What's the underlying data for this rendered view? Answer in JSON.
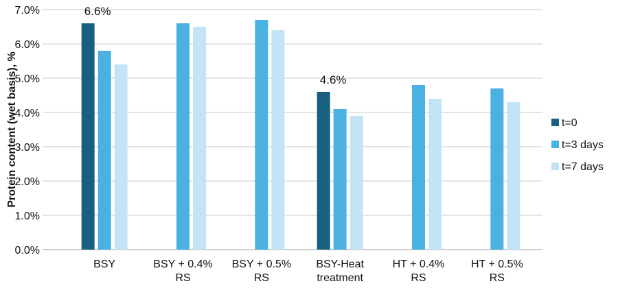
{
  "chart_data": {
    "type": "bar",
    "title": "",
    "xlabel": "",
    "ylabel": "Protein content (wet basis), %",
    "ylim": [
      0,
      7
    ],
    "yticks": [
      "0.0%",
      "1.0%",
      "2.0%",
      "3.0%",
      "4.0%",
      "5.0%",
      "6.0%",
      "7.0%"
    ],
    "grid": true,
    "legend_position": "right",
    "categories": [
      [
        "BSY"
      ],
      [
        "BSY + 0.4%",
        "RS"
      ],
      [
        "BSY + 0.5%",
        "RS"
      ],
      [
        "BSY-Heat",
        "treatment"
      ],
      [
        "HT + 0.4%",
        "RS"
      ],
      [
        "HT + 0.5%",
        "RS"
      ]
    ],
    "series": [
      {
        "name": "t=0",
        "color": "#17607f",
        "values": [
          6.6,
          null,
          null,
          4.6,
          null,
          null
        ]
      },
      {
        "name": "t=3 days",
        "color": "#4ab1e1",
        "values": [
          5.8,
          6.6,
          6.7,
          4.1,
          4.8,
          4.7
        ]
      },
      {
        "name": "t=7 days",
        "color": "#c2e4f4",
        "values": [
          5.4,
          6.5,
          6.4,
          3.9,
          4.4,
          4.3
        ]
      }
    ],
    "annotations": [
      {
        "text": "6.6%",
        "category": 0,
        "series": 0
      },
      {
        "text": "4.6%",
        "category": 3,
        "series": 0
      }
    ]
  }
}
